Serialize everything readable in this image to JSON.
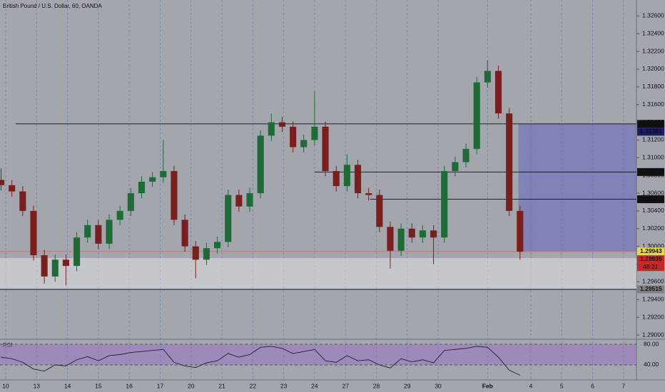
{
  "chart_data": [
    {
      "type": "candlestick",
      "title": "British Pound / U.S. Dollar, 60, OANDA",
      "up_color": "#1f6b38",
      "down_color": "#7a1f1f",
      "xlim": [
        -0.185,
        20.42
      ],
      "ylim": [
        1.2896,
        1.3278
      ],
      "xticks": [
        {
          "value": 0,
          "label": "10"
        },
        {
          "value": 1,
          "label": "13"
        },
        {
          "value": 2,
          "label": "14"
        },
        {
          "value": 3,
          "label": "15"
        },
        {
          "value": 4,
          "label": "16"
        },
        {
          "value": 5,
          "label": "17"
        },
        {
          "value": 6,
          "label": "20"
        },
        {
          "value": 7,
          "label": "21"
        },
        {
          "value": 8,
          "label": "22"
        },
        {
          "value": 9,
          "label": "23"
        },
        {
          "value": 10,
          "label": "24"
        },
        {
          "value": 11,
          "label": "27"
        },
        {
          "value": 12,
          "label": "28"
        },
        {
          "value": 13,
          "label": "29"
        },
        {
          "value": 14,
          "label": "30"
        },
        {
          "value": 15.6,
          "label": "Feb"
        },
        {
          "value": 17,
          "label": "4"
        },
        {
          "value": 18,
          "label": "5"
        },
        {
          "value": 19,
          "label": "6"
        },
        {
          "value": 20,
          "label": "7"
        }
      ],
      "yticks": [
        {
          "value": 1.326,
          "label": "1.32600"
        },
        {
          "value": 1.324,
          "label": "1.32400"
        },
        {
          "value": 1.322,
          "label": "1.32200"
        },
        {
          "value": 1.32,
          "label": "1.32000"
        },
        {
          "value": 1.318,
          "label": "1.31800"
        },
        {
          "value": 1.316,
          "label": "1.31600"
        },
        {
          "value": 1.314,
          "label": "1.31400"
        },
        {
          "value": 1.312,
          "label": "1.31200"
        },
        {
          "value": 1.31,
          "label": "1.31000"
        },
        {
          "value": 1.308,
          "label": "1.30800"
        },
        {
          "value": 1.306,
          "label": "1.30600"
        },
        {
          "value": 1.304,
          "label": "1.30400"
        },
        {
          "value": 1.302,
          "label": "1.30200"
        },
        {
          "value": 1.3,
          "label": "1.30000"
        },
        {
          "value": 1.298,
          "label": "1.29800"
        },
        {
          "value": 1.296,
          "label": "1.29600"
        },
        {
          "value": 1.294,
          "label": "1.29400"
        },
        {
          "value": 1.292,
          "label": "1.29200"
        },
        {
          "value": 1.29,
          "label": "1.29000"
        }
      ],
      "x": [
        -0.15,
        0.2,
        0.55,
        0.9,
        1.25,
        1.6,
        1.95,
        2.3,
        2.65,
        3,
        3.35,
        3.7,
        4.05,
        4.4,
        4.75,
        5.1,
        5.45,
        5.8,
        6.15,
        6.5,
        6.85,
        7.2,
        7.55,
        7.9,
        8.25,
        8.6,
        8.95,
        9.3,
        9.65,
        10,
        10.35,
        10.7,
        11.05,
        11.4,
        11.75,
        12.1,
        12.45,
        12.8,
        13.15,
        13.5,
        13.85,
        14.2,
        14.55,
        14.9,
        15.25,
        15.6,
        15.95,
        16.3,
        16.65
      ],
      "open": [
        1.3075,
        1.3069,
        1.3062,
        1.304,
        1.299,
        1.2966,
        1.2985,
        1.2978,
        1.301,
        1.3024,
        1.3003,
        1.303,
        1.304,
        1.306,
        1.3073,
        1.3078,
        1.3085,
        1.303,
        1.3,
        1.2985,
        1.2998,
        1.3005,
        1.3058,
        1.3045,
        1.306,
        1.3125,
        1.314,
        1.3135,
        1.3112,
        1.312,
        1.3135,
        1.3085,
        1.3068,
        1.3092,
        1.306,
        1.3058,
        1.3022,
        1.2995,
        1.302,
        1.301,
        1.3018,
        1.301,
        1.3085,
        1.3095,
        1.311,
        1.3185,
        1.3198,
        1.315,
        1.304
      ],
      "high": [
        1.3088,
        1.3075,
        1.3068,
        1.3046,
        1.2996,
        1.2991,
        1.2991,
        1.3016,
        1.303,
        1.303,
        1.3036,
        1.3046,
        1.3066,
        1.3079,
        1.3084,
        1.312,
        1.3091,
        1.3036,
        1.3006,
        1.3004,
        1.3011,
        1.3064,
        1.3064,
        1.3066,
        1.3131,
        1.315,
        1.3146,
        1.3141,
        1.3126,
        1.3175,
        1.3141,
        1.3091,
        1.3104,
        1.3098,
        1.3066,
        1.3064,
        1.3028,
        1.3026,
        1.3026,
        1.3024,
        1.3024,
        1.3091,
        1.3101,
        1.3116,
        1.3191,
        1.321,
        1.3204,
        1.3156,
        1.3046
      ],
      "low": [
        1.3063,
        1.3056,
        1.3034,
        1.2984,
        1.2958,
        1.296,
        1.2956,
        1.2972,
        1.3004,
        1.2997,
        1.2997,
        1.3024,
        1.3034,
        1.3054,
        1.3067,
        1.3072,
        1.3024,
        1.2994,
        1.2964,
        1.2979,
        1.2992,
        1.2999,
        1.3039,
        1.3039,
        1.3054,
        1.3119,
        1.3129,
        1.3106,
        1.3106,
        1.3114,
        1.3079,
        1.3062,
        1.3062,
        1.3054,
        1.3052,
        1.3016,
        1.2975,
        1.2989,
        1.3004,
        1.3004,
        1.298,
        1.3004,
        1.3079,
        1.3089,
        1.3104,
        1.3179,
        1.3144,
        1.3034,
        1.2985
      ],
      "close": [
        1.3069,
        1.3062,
        1.304,
        1.299,
        1.2966,
        1.2985,
        1.2978,
        1.301,
        1.3024,
        1.3003,
        1.303,
        1.304,
        1.306,
        1.3073,
        1.3078,
        1.3085,
        1.303,
        1.3,
        1.2985,
        1.2998,
        1.3005,
        1.3058,
        1.3045,
        1.306,
        1.3125,
        1.314,
        1.3135,
        1.3112,
        1.312,
        1.3135,
        1.3085,
        1.3068,
        1.3092,
        1.306,
        1.3058,
        1.3022,
        1.2995,
        1.302,
        1.301,
        1.3018,
        1.301,
        1.3085,
        1.3095,
        1.311,
        1.3185,
        1.3198,
        1.315,
        1.304,
        1.2994
      ],
      "zones": [
        {
          "from": 1.29868,
          "to": 1.29515,
          "x_from": -0.185,
          "color": "rgba(225,225,228,0.55)"
        },
        {
          "from": 1.31382,
          "to": 1.29943,
          "x_from": 16.6,
          "color": "rgba(105,105,190,0.6)"
        }
      ],
      "levels": [
        {
          "value": 1.31382,
          "x_from": 0.32,
          "line": true,
          "color": "#111111",
          "text_color": "#ffffff"
        },
        {
          "value": 1.31381,
          "x_from": 0.32,
          "line": false,
          "color": "#1b1b6b",
          "text_color": "#ffffff"
        },
        {
          "value": 1.30839,
          "x_from": 10,
          "line": true,
          "color": "#111111",
          "text_color": "#ffffff"
        },
        {
          "value": 1.30532,
          "x_from": 11.8,
          "line": true,
          "color": "#111111",
          "text_color": "#ffffff"
        },
        {
          "value": 1.29943,
          "x_from": -0.185,
          "line": true,
          "color": "#e8d84a",
          "line_color": "#d07070",
          "text_color": "#111111"
        },
        {
          "value": 1.29935,
          "x_from": -0.185,
          "line": false,
          "color": "#c62828",
          "text_color": "#ffffff",
          "countdown": "48:21"
        },
        {
          "value": 1.29515,
          "x_from": -0.185,
          "line": true,
          "color": "#808080",
          "text_color": "#ffffff"
        }
      ]
    },
    {
      "type": "line",
      "title": "RSI",
      "color": "#222222",
      "band_color": "rgba(150,110,200,0.5)",
      "xlim": [
        -0.185,
        20.42
      ],
      "ylim": [
        12.4,
        86.9
      ],
      "yticks": [
        {
          "value": 80,
          "label": "80.00"
        },
        {
          "value": 40,
          "label": "40.00"
        }
      ],
      "x": [
        -0.15,
        0.2,
        0.55,
        0.9,
        1.25,
        1.6,
        1.95,
        2.3,
        2.65,
        3,
        3.35,
        3.7,
        4.05,
        4.4,
        4.75,
        5.1,
        5.45,
        5.8,
        6.15,
        6.5,
        6.85,
        7.2,
        7.55,
        7.9,
        8.25,
        8.6,
        8.95,
        9.3,
        9.65,
        10,
        10.35,
        10.7,
        11.05,
        11.4,
        11.75,
        12.1,
        12.45,
        12.8,
        13.15,
        13.5,
        13.85,
        14.2,
        14.55,
        14.9,
        15.25,
        15.6,
        15.95,
        16.3,
        16.65
      ],
      "values": [
        55,
        52,
        45,
        32,
        28,
        40,
        38,
        50,
        56,
        48,
        58,
        60,
        64,
        66,
        68,
        70,
        45,
        38,
        35,
        44,
        48,
        62,
        55,
        60,
        74,
        76,
        72,
        62,
        66,
        70,
        48,
        45,
        58,
        48,
        50,
        40,
        34,
        52,
        46,
        50,
        44,
        68,
        70,
        72,
        76,
        74,
        55,
        30,
        20
      ]
    }
  ]
}
